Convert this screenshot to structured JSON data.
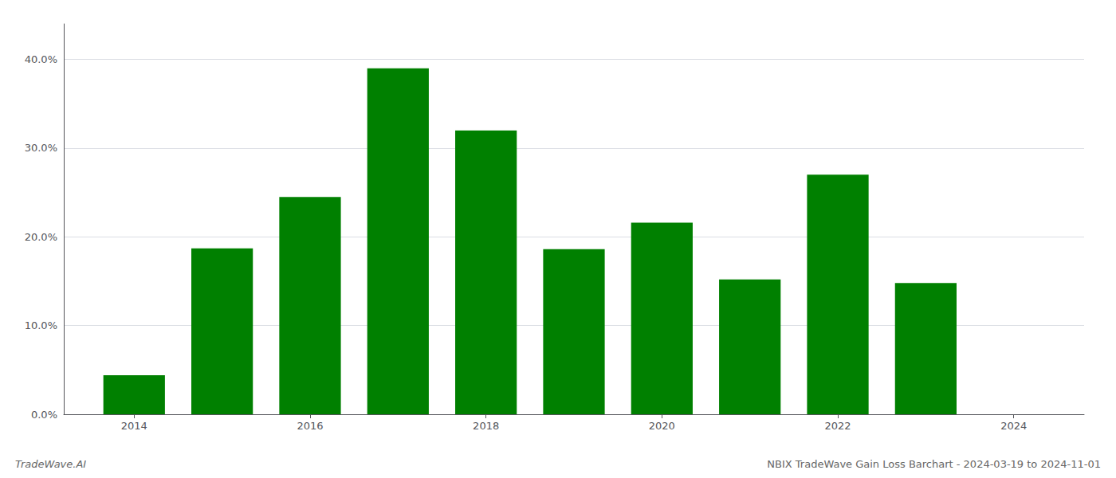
{
  "chart_data": {
    "type": "bar",
    "title": "NBIX TradeWave Gain Loss Barchart - 2024-03-19 to 2024-11-01",
    "annotations": [
      "TradeWave.AI"
    ],
    "x": [
      2014,
      2015,
      2016,
      2017,
      2018,
      2019,
      2020,
      2021,
      2022,
      2023
    ],
    "values": [
      0.044,
      0.187,
      0.245,
      0.39,
      0.32,
      0.186,
      0.216,
      0.152,
      0.27,
      0.148
    ],
    "color": "#008000",
    "xlim": [
      2013.2,
      2024.8
    ],
    "xticks": [
      2014,
      2016,
      2018,
      2020,
      2022,
      2024
    ],
    "ylim": [
      0,
      0.44
    ],
    "yticks": [
      {
        "value": 0.0,
        "label": "0.0%"
      },
      {
        "value": 0.1,
        "label": "10.0%"
      },
      {
        "value": 0.2,
        "label": "20.0%"
      },
      {
        "value": 0.3,
        "label": "30.0%"
      },
      {
        "value": 0.4,
        "label": "40.0%"
      }
    ],
    "grid": true
  }
}
